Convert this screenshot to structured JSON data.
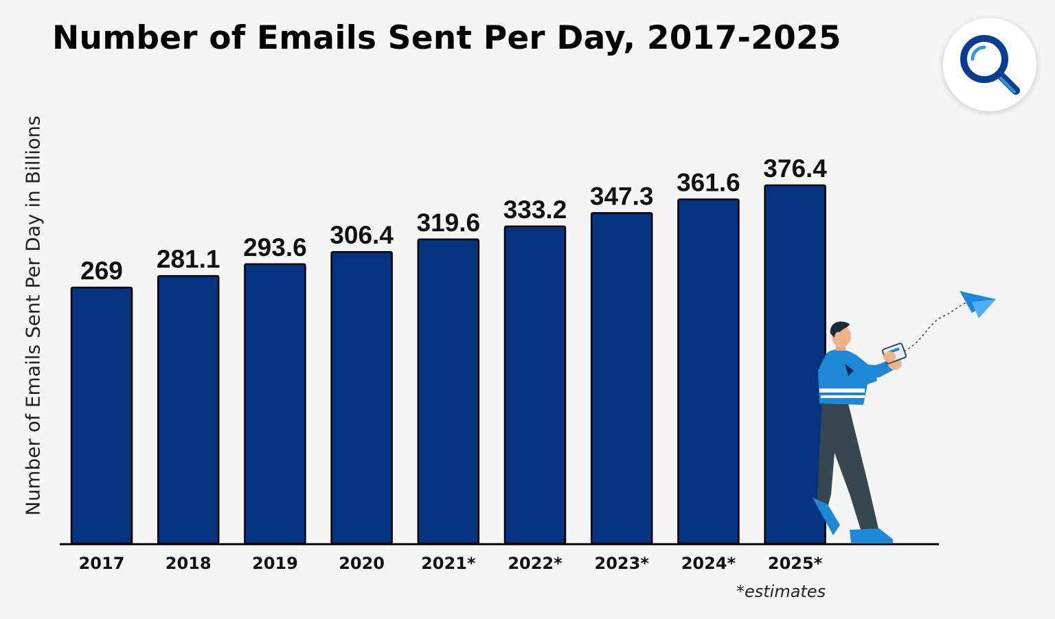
{
  "title": "Number of Emails Sent Per Day, 2017-2025",
  "footnote": "*estimates",
  "colors": {
    "bar": "#063380",
    "background": "#f5f5f5",
    "accent": "#1e88d6"
  },
  "logo_icon": "magnifier-icon",
  "chart_data": {
    "type": "bar",
    "title": "Number of Emails Sent Per Day, 2017-2025",
    "xlabel": "",
    "ylabel": "Number of Emails Sent Per Day in Billions",
    "categories": [
      "2017",
      "2018",
      "2019",
      "2020",
      "2021*",
      "2022*",
      "2023*",
      "2024*",
      "2025*"
    ],
    "values": [
      269,
      281.1,
      293.6,
      306.4,
      319.6,
      333.2,
      347.3,
      361.6,
      376.4
    ],
    "value_labels": [
      "269",
      "281.1",
      "293.6",
      "306.4",
      "319.6",
      "333.2",
      "347.3",
      "361.6",
      "376.4"
    ],
    "ylim": [
      0,
      376.4
    ],
    "grid": false,
    "legend": "none"
  }
}
